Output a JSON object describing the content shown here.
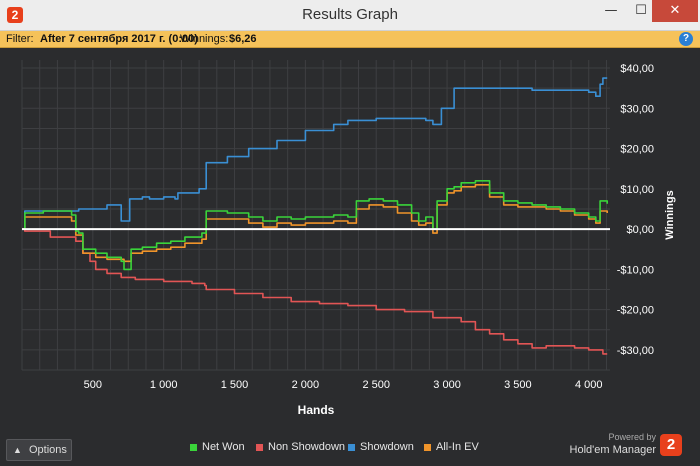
{
  "window": {
    "title": "Results Graph",
    "app_icon_text": "2",
    "minimize_glyph": "—",
    "maximize_glyph": "☐",
    "close_glyph": "✕"
  },
  "filter": {
    "label": "Filter:",
    "value": "After 7 сентября 2017 г. (0:00)",
    "winnings_label": "Winnings:",
    "winnings_value": "$6,26",
    "help_icon": "?"
  },
  "footer": {
    "options_label": "Options",
    "powered_by": "Powered by",
    "brand_name": "Hold'em Manager",
    "brand_logo_text": "2"
  },
  "colors": {
    "background": "#2b2c2e",
    "grid": "#3e3f42",
    "zero_line": "#ffffff",
    "filter_bar": "#f5c25a"
  },
  "chart_data": {
    "type": "line",
    "xlabel": "Hands",
    "ylabel": "Winnings",
    "xlim": [
      0,
      4150
    ],
    "ylim": [
      -35,
      42
    ],
    "x_ticks": [
      500,
      1000,
      1500,
      2000,
      2500,
      3000,
      3500,
      4000
    ],
    "x_tick_labels": [
      "500",
      "1 000",
      "1 500",
      "2 000",
      "2 500",
      "3 000",
      "3 500",
      "4 000"
    ],
    "y_ticks": [
      40,
      30,
      20,
      10,
      0,
      -10,
      -20,
      -30
    ],
    "y_tick_labels": [
      "$40,00",
      "$30,00",
      "$20,00",
      "$10,00",
      "$0,00",
      "-$10,00",
      "-$20,00",
      "-$30,00"
    ],
    "grid": true,
    "legend_position": "bottom",
    "series": [
      {
        "name": "Net Won",
        "color": "#3ad43a",
        "points": [
          [
            0,
            0
          ],
          [
            20,
            4
          ],
          [
            150,
            4.5
          ],
          [
            350,
            3.5
          ],
          [
            380,
            -0.5
          ],
          [
            400,
            -1
          ],
          [
            430,
            -5
          ],
          [
            470,
            -5
          ],
          [
            520,
            -6
          ],
          [
            600,
            -7
          ],
          [
            700,
            -8
          ],
          [
            720,
            -10
          ],
          [
            760,
            -10
          ],
          [
            770,
            -5
          ],
          [
            850,
            -4.5
          ],
          [
            950,
            -3.5
          ],
          [
            1050,
            -3
          ],
          [
            1150,
            -2
          ],
          [
            1270,
            -1
          ],
          [
            1290,
            -1
          ],
          [
            1300,
            4.5
          ],
          [
            1450,
            4
          ],
          [
            1600,
            3
          ],
          [
            1700,
            2
          ],
          [
            1800,
            3
          ],
          [
            1900,
            2.5
          ],
          [
            2000,
            3
          ],
          [
            2200,
            3.5
          ],
          [
            2300,
            3
          ],
          [
            2350,
            3
          ],
          [
            2360,
            7
          ],
          [
            2450,
            7.5
          ],
          [
            2550,
            7
          ],
          [
            2650,
            6
          ],
          [
            2750,
            4
          ],
          [
            2800,
            2
          ],
          [
            2850,
            3
          ],
          [
            2900,
            0
          ],
          [
            2920,
            0
          ],
          [
            2930,
            7
          ],
          [
            3000,
            10
          ],
          [
            3050,
            10.5
          ],
          [
            3100,
            11.5
          ],
          [
            3200,
            12
          ],
          [
            3300,
            9
          ],
          [
            3400,
            7
          ],
          [
            3500,
            6.5
          ],
          [
            3600,
            6
          ],
          [
            3700,
            5.5
          ],
          [
            3800,
            5
          ],
          [
            3900,
            4
          ],
          [
            4000,
            3
          ],
          [
            4050,
            2
          ],
          [
            4080,
            7
          ],
          [
            4130,
            6.3
          ]
        ]
      },
      {
        "name": "Non Showdown",
        "color": "#e25555",
        "points": [
          [
            0,
            0
          ],
          [
            20,
            -0.5
          ],
          [
            200,
            -2
          ],
          [
            380,
            -3
          ],
          [
            430,
            -6
          ],
          [
            480,
            -8
          ],
          [
            520,
            -10
          ],
          [
            600,
            -11
          ],
          [
            700,
            -12
          ],
          [
            800,
            -12.5
          ],
          [
            1000,
            -13
          ],
          [
            1200,
            -13.5
          ],
          [
            1290,
            -14
          ],
          [
            1300,
            -15
          ],
          [
            1500,
            -16
          ],
          [
            1700,
            -17
          ],
          [
            1900,
            -18
          ],
          [
            2100,
            -18.5
          ],
          [
            2300,
            -19
          ],
          [
            2500,
            -20
          ],
          [
            2700,
            -20.5
          ],
          [
            2900,
            -22
          ],
          [
            3000,
            -22
          ],
          [
            3100,
            -23
          ],
          [
            3200,
            -25
          ],
          [
            3300,
            -26
          ],
          [
            3400,
            -27.5
          ],
          [
            3500,
            -28.5
          ],
          [
            3600,
            -29.5
          ],
          [
            3700,
            -29
          ],
          [
            3800,
            -29
          ],
          [
            3900,
            -29.5
          ],
          [
            4000,
            -30
          ],
          [
            4100,
            -31
          ],
          [
            4130,
            -31
          ]
        ]
      },
      {
        "name": "Showdown",
        "color": "#3a8fd4",
        "points": [
          [
            0,
            0
          ],
          [
            20,
            4.5
          ],
          [
            200,
            4.5
          ],
          [
            400,
            5
          ],
          [
            600,
            6
          ],
          [
            680,
            6
          ],
          [
            700,
            2
          ],
          [
            750,
            2
          ],
          [
            760,
            7.5
          ],
          [
            850,
            8
          ],
          [
            900,
            7.5
          ],
          [
            1000,
            8
          ],
          [
            1080,
            7.5
          ],
          [
            1100,
            9
          ],
          [
            1250,
            10
          ],
          [
            1290,
            10
          ],
          [
            1300,
            16.5
          ],
          [
            1450,
            18
          ],
          [
            1600,
            20
          ],
          [
            1800,
            22
          ],
          [
            2000,
            24.5
          ],
          [
            2200,
            26
          ],
          [
            2300,
            27
          ],
          [
            2500,
            27.5
          ],
          [
            2700,
            27.5
          ],
          [
            2850,
            27
          ],
          [
            2900,
            26
          ],
          [
            2950,
            26
          ],
          [
            2960,
            30
          ],
          [
            3000,
            30
          ],
          [
            3050,
            35
          ],
          [
            3200,
            35
          ],
          [
            3400,
            35
          ],
          [
            3600,
            34.5
          ],
          [
            3800,
            34.5
          ],
          [
            4000,
            34
          ],
          [
            4050,
            33
          ],
          [
            4080,
            36
          ],
          [
            4100,
            37.5
          ],
          [
            4130,
            37.5
          ]
        ]
      },
      {
        "name": "All-In EV",
        "color": "#f0942a",
        "points": [
          [
            0,
            0
          ],
          [
            20,
            3
          ],
          [
            150,
            3
          ],
          [
            350,
            2
          ],
          [
            380,
            -1.5
          ],
          [
            430,
            -6
          ],
          [
            470,
            -6
          ],
          [
            520,
            -7
          ],
          [
            600,
            -7.5
          ],
          [
            720,
            -8
          ],
          [
            760,
            -8
          ],
          [
            770,
            -6
          ],
          [
            850,
            -5.5
          ],
          [
            950,
            -5
          ],
          [
            1050,
            -4.5
          ],
          [
            1150,
            -3.5
          ],
          [
            1270,
            -2.5
          ],
          [
            1290,
            -2.5
          ],
          [
            1300,
            2.5
          ],
          [
            1450,
            2.5
          ],
          [
            1600,
            1.5
          ],
          [
            1700,
            0.5
          ],
          [
            1800,
            1.5
          ],
          [
            1900,
            1
          ],
          [
            2000,
            1.5
          ],
          [
            2200,
            2
          ],
          [
            2300,
            1.5
          ],
          [
            2350,
            1.5
          ],
          [
            2360,
            5
          ],
          [
            2450,
            6
          ],
          [
            2550,
            5.5
          ],
          [
            2650,
            4
          ],
          [
            2750,
            2
          ],
          [
            2800,
            1
          ],
          [
            2850,
            1.5
          ],
          [
            2900,
            -1
          ],
          [
            2920,
            -1
          ],
          [
            2930,
            6
          ],
          [
            3000,
            9
          ],
          [
            3050,
            9.5
          ],
          [
            3100,
            10.5
          ],
          [
            3200,
            11
          ],
          [
            3300,
            8
          ],
          [
            3400,
            6
          ],
          [
            3500,
            5.5
          ],
          [
            3600,
            5.5
          ],
          [
            3700,
            5
          ],
          [
            3800,
            4.5
          ],
          [
            3900,
            3.5
          ],
          [
            4000,
            2.5
          ],
          [
            4050,
            1.5
          ],
          [
            4080,
            4.5
          ],
          [
            4130,
            4
          ]
        ]
      }
    ]
  }
}
